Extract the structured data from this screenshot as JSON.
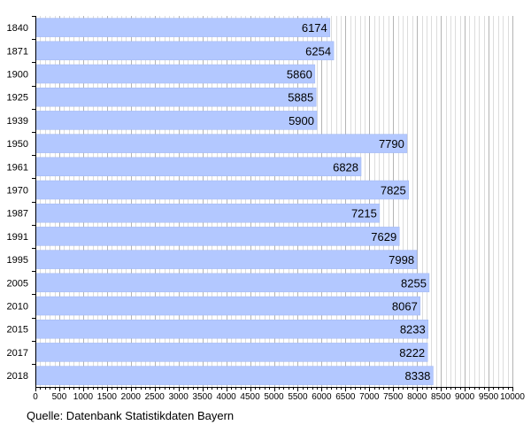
{
  "chart_data": {
    "type": "bar",
    "orientation": "horizontal",
    "categories": [
      "1840",
      "1871",
      "1900",
      "1925",
      "1939",
      "1950",
      "1961",
      "1970",
      "1987",
      "1991",
      "1995",
      "2005",
      "2010",
      "2015",
      "2017",
      "2018"
    ],
    "values": [
      6174,
      6254,
      5860,
      5885,
      5900,
      7790,
      6828,
      7825,
      7215,
      7629,
      7998,
      8255,
      8067,
      8233,
      8222,
      8338
    ],
    "xlim": [
      0,
      10000
    ],
    "xticks": [
      0,
      500,
      1000,
      1500,
      2000,
      2500,
      3000,
      3500,
      4000,
      4500,
      5000,
      5500,
      6000,
      6500,
      7000,
      7500,
      8000,
      8500,
      9000,
      9500,
      10000
    ],
    "grid": true,
    "bar_color": "#b3c8ff",
    "title": "",
    "xlabel": "",
    "ylabel": ""
  },
  "source_note": "Quelle: Datenbank Statistikdaten Bayern"
}
